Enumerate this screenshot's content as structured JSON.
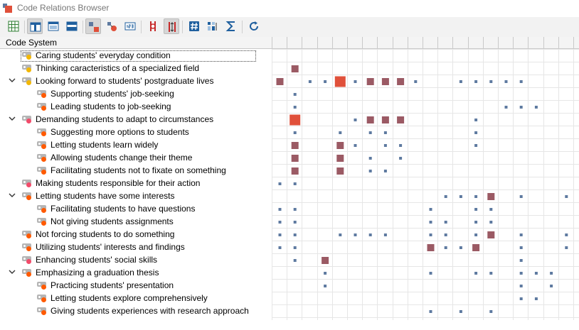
{
  "window": {
    "title": "Code Relations Browser",
    "app_icon": "code-relations-app-icon"
  },
  "toolbar": {
    "buttons": [
      {
        "name": "grid-view-icon",
        "active": false
      },
      {
        "name": "layout-left-icon",
        "active": true
      },
      {
        "name": "layout-top-icon",
        "active": false
      },
      {
        "name": "layout-bottom-icon",
        "active": false
      },
      {
        "name": "squares-symbol-icon",
        "active": true
      },
      {
        "name": "circles-symbol-icon",
        "active": false
      },
      {
        "name": "numbers-symbol-icon",
        "active": false
      },
      {
        "name": "compare-columns-icon",
        "active": false
      },
      {
        "name": "compare-rows-icon",
        "active": true
      },
      {
        "name": "hash-count-icon",
        "active": false
      },
      {
        "name": "sort-columns-icon",
        "active": false
      },
      {
        "name": "sum-icon",
        "active": false
      },
      {
        "name": "refresh-icon",
        "active": false
      }
    ]
  },
  "header": {
    "code_system_label": "Code System"
  },
  "colors": {
    "square_large": "#e0503a",
    "square_medium": "#9b5a64",
    "square_small": "#5e7aa0",
    "grid": "#e6e6e6"
  },
  "codes": [
    {
      "label": "Caring students' everyday condition",
      "level": 0,
      "expanded": null,
      "dot": "#f2b705",
      "focused": true
    },
    {
      "label": "Thinking caracteristics of a specialized field",
      "level": 0,
      "expanded": null,
      "dot": "#f2b705"
    },
    {
      "label": "Looking forward to students' postgraduate lives",
      "level": 0,
      "expanded": true,
      "dot": "#f2b705"
    },
    {
      "label": "Supporting students' job-seeking",
      "level": 1,
      "expanded": null,
      "dot": "#ff5a00"
    },
    {
      "label": "Leading students to job-seeking",
      "level": 1,
      "expanded": null,
      "dot": "#ff5a00"
    },
    {
      "label": "Demanding students to adapt to circumstances",
      "level": 0,
      "expanded": true,
      "dot": "#f24b6a"
    },
    {
      "label": "Suggesting more options to students",
      "level": 1,
      "expanded": null,
      "dot": "#ff5a00"
    },
    {
      "label": "Letting students learn widely",
      "level": 1,
      "expanded": null,
      "dot": "#ff5a00"
    },
    {
      "label": "Allowing students change their theme",
      "level": 1,
      "expanded": null,
      "dot": "#ff5a00"
    },
    {
      "label": "Facilitating students not to fixate on something",
      "level": 1,
      "expanded": null,
      "dot": "#ff5a00"
    },
    {
      "label": "Making students responsible for their action",
      "level": 0,
      "expanded": null,
      "dot": "#f24b6a"
    },
    {
      "label": "Letting students have some interests",
      "level": 0,
      "expanded": true,
      "dot": "#ff5a00"
    },
    {
      "label": "Facilitating students to have questions",
      "level": 1,
      "expanded": null,
      "dot": "#ff5a00"
    },
    {
      "label": "Not giving students assignments",
      "level": 1,
      "expanded": null,
      "dot": "#ff5a00"
    },
    {
      "label": "Not forcing students to do something",
      "level": 0,
      "expanded": null,
      "dot": "#ff5a00"
    },
    {
      "label": "Utilizing students' interests and findings",
      "level": 0,
      "expanded": null,
      "dot": "#ff5a00"
    },
    {
      "label": "Enhancing students' social skills",
      "level": 0,
      "expanded": null,
      "dot": "#f24b6a"
    },
    {
      "label": "Emphasizing a graduation thesis",
      "level": 0,
      "expanded": true,
      "dot": "#ff5a00"
    },
    {
      "label": "Practicing students' presentation",
      "level": 1,
      "expanded": null,
      "dot": "#ff5a00"
    },
    {
      "label": "Letting students explore comprehensively",
      "level": 1,
      "expanded": null,
      "dot": "#ff5a00"
    },
    {
      "label": "Giving students experiences with research approach",
      "level": 1,
      "expanded": null,
      "dot": "#ff5a00"
    }
  ],
  "matrix": {
    "columns": 20,
    "cells": [
      [],
      [
        [
          1,
          2
        ]
      ],
      [
        [
          0,
          2
        ],
        [
          2,
          1
        ],
        [
          3,
          1
        ],
        [
          4,
          3
        ],
        [
          5,
          1
        ],
        [
          6,
          2
        ],
        [
          7,
          2
        ],
        [
          8,
          2
        ],
        [
          9,
          1
        ],
        [
          12,
          1
        ],
        [
          13,
          1
        ],
        [
          14,
          1
        ],
        [
          15,
          1
        ],
        [
          16,
          1
        ]
      ],
      [
        [
          1,
          1
        ]
      ],
      [
        [
          1,
          1
        ],
        [
          15,
          1
        ],
        [
          16,
          1
        ],
        [
          17,
          1
        ]
      ],
      [
        [
          1,
          3
        ],
        [
          5,
          1
        ],
        [
          6,
          2
        ],
        [
          7,
          2
        ],
        [
          8,
          2
        ],
        [
          13,
          1
        ]
      ],
      [
        [
          1,
          1
        ],
        [
          4,
          1
        ],
        [
          6,
          1
        ],
        [
          7,
          1
        ],
        [
          13,
          1
        ]
      ],
      [
        [
          1,
          2
        ],
        [
          4,
          2
        ],
        [
          5,
          1
        ],
        [
          7,
          1
        ],
        [
          8,
          1
        ],
        [
          13,
          1
        ]
      ],
      [
        [
          1,
          2
        ],
        [
          4,
          2
        ],
        [
          6,
          1
        ],
        [
          8,
          1
        ]
      ],
      [
        [
          1,
          2
        ],
        [
          4,
          2
        ],
        [
          6,
          1
        ],
        [
          7,
          1
        ]
      ],
      [
        [
          0,
          1
        ],
        [
          1,
          1
        ]
      ],
      [
        [
          11,
          1
        ],
        [
          12,
          1
        ],
        [
          13,
          1
        ],
        [
          14,
          2
        ],
        [
          16,
          1
        ],
        [
          19,
          1
        ]
      ],
      [
        [
          0,
          1
        ],
        [
          1,
          1
        ],
        [
          10,
          1
        ],
        [
          13,
          1
        ],
        [
          14,
          1
        ]
      ],
      [
        [
          0,
          1
        ],
        [
          1,
          1
        ],
        [
          10,
          1
        ],
        [
          11,
          1
        ],
        [
          13,
          1
        ],
        [
          14,
          1
        ]
      ],
      [
        [
          0,
          1
        ],
        [
          1,
          1
        ],
        [
          4,
          1
        ],
        [
          5,
          1
        ],
        [
          6,
          1
        ],
        [
          7,
          1
        ],
        [
          10,
          1
        ],
        [
          11,
          1
        ],
        [
          13,
          1
        ],
        [
          14,
          2
        ],
        [
          16,
          1
        ],
        [
          19,
          1
        ]
      ],
      [
        [
          0,
          1
        ],
        [
          1,
          1
        ],
        [
          10,
          2
        ],
        [
          11,
          1
        ],
        [
          12,
          1
        ],
        [
          13,
          2
        ],
        [
          16,
          1
        ],
        [
          19,
          1
        ]
      ],
      [
        [
          1,
          1
        ],
        [
          3,
          2
        ],
        [
          16,
          1
        ]
      ],
      [
        [
          3,
          1
        ],
        [
          10,
          1
        ],
        [
          13,
          1
        ],
        [
          14,
          1
        ],
        [
          16,
          1
        ],
        [
          17,
          1
        ],
        [
          18,
          1
        ]
      ],
      [
        [
          3,
          1
        ],
        [
          16,
          1
        ],
        [
          18,
          1
        ]
      ],
      [
        [
          16,
          1
        ],
        [
          17,
          1
        ]
      ],
      [
        [
          10,
          1
        ],
        [
          12,
          1
        ],
        [
          14,
          1
        ]
      ]
    ]
  }
}
